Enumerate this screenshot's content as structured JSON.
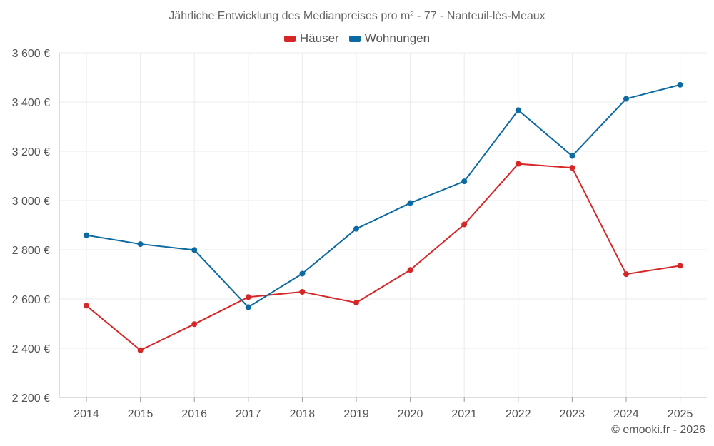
{
  "chart_data": {
    "type": "line",
    "title": "Jährliche Entwicklung des Medianpreises pro m² - 77 - Nanteuil-lès-Meaux",
    "xlabel": "",
    "ylabel": "",
    "categories": [
      "2014",
      "2015",
      "2016",
      "2017",
      "2018",
      "2019",
      "2020",
      "2021",
      "2022",
      "2023",
      "2024",
      "2025"
    ],
    "ylim": [
      2200,
      3600
    ],
    "yticks": [
      2200,
      2400,
      2600,
      2800,
      3000,
      3200,
      3400,
      3600
    ],
    "ytick_labels": [
      "2 200 €",
      "2 400 €",
      "2 600 €",
      "2 800 €",
      "3 000 €",
      "3 200 €",
      "3 400 €",
      "3 600 €"
    ],
    "grid": true,
    "legend_position": "top-center",
    "series": [
      {
        "name": "Häuser",
        "color": "#d62728",
        "values": [
          2573,
          2392,
          2498,
          2608,
          2629,
          2585,
          2718,
          2903,
          3149,
          3133,
          2701,
          2735
        ]
      },
      {
        "name": "Wohnungen",
        "color": "#0b6aa2",
        "values": [
          2859,
          2823,
          2799,
          2567,
          2703,
          2885,
          2990,
          3078,
          3367,
          3181,
          3413,
          3470
        ]
      }
    ]
  },
  "credit": "© emooki.fr - 2026"
}
